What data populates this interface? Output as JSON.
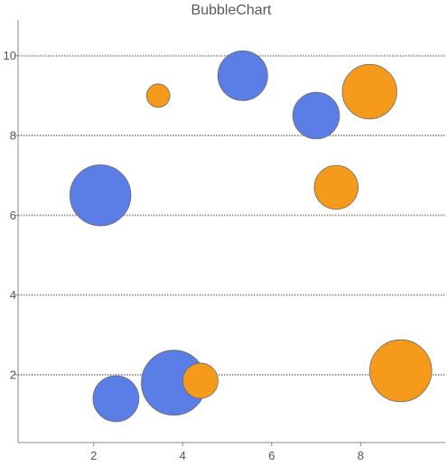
{
  "chart_data": {
    "type": "scatter",
    "subtype": "bubble",
    "title": "BubbleChart",
    "xlabel": "",
    "ylabel": "",
    "xlim": [
      0.3,
      9.9
    ],
    "ylim": [
      0.3,
      10.9
    ],
    "x_ticks": [
      2,
      4,
      6,
      8
    ],
    "y_ticks": [
      2,
      4,
      6,
      8,
      10
    ],
    "grid": "horizontal-dotted",
    "series": [
      {
        "color": "#5a7de6",
        "points": [
          {
            "x": 2.15,
            "y": 6.5,
            "size": 3.0
          },
          {
            "x": 5.35,
            "y": 9.5,
            "size": 2.0
          },
          {
            "x": 7.0,
            "y": 8.5,
            "size": 1.75
          },
          {
            "x": 2.5,
            "y": 1.4,
            "size": 1.7
          },
          {
            "x": 3.8,
            "y": 1.8,
            "size": 3.4
          }
        ]
      },
      {
        "color": "#f59a1a",
        "points": [
          {
            "x": 3.45,
            "y": 9.0,
            "size": 0.44
          },
          {
            "x": 8.2,
            "y": 9.1,
            "size": 2.4
          },
          {
            "x": 7.45,
            "y": 6.7,
            "size": 1.55
          },
          {
            "x": 4.4,
            "y": 1.85,
            "size": 1.0
          },
          {
            "x": 8.9,
            "y": 2.1,
            "size": 3.1
          }
        ]
      }
    ]
  }
}
